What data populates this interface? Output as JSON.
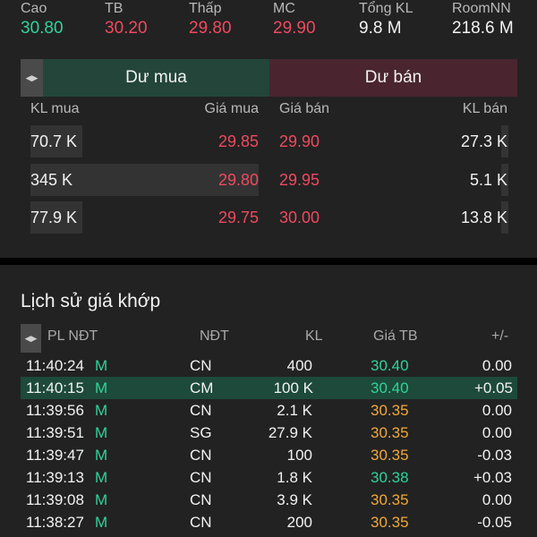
{
  "colors": {
    "up": "#2fd39a",
    "down": "#ee4a5f",
    "ref": "#f0a838",
    "buy_header_bg": "#23453a",
    "sell_header_bg": "#4a2530",
    "highlight_row_bg": "#1d4a3a"
  },
  "stats": [
    {
      "label": "Cao",
      "value": "30.80",
      "tone": "green"
    },
    {
      "label": "TB",
      "value": "30.20",
      "tone": "red"
    },
    {
      "label": "Thấp",
      "value": "29.80",
      "tone": "red"
    },
    {
      "label": "MC",
      "value": "29.90",
      "tone": "red"
    },
    {
      "label": "Tổng KL",
      "value": "9.8 M",
      "tone": "white"
    },
    {
      "label": "RoomNN",
      "value": "218.6 M",
      "tone": "white"
    }
  ],
  "orderbook": {
    "toggle_icon": "expand-arrows-icon",
    "buy_tab": "Dư mua",
    "sell_tab": "Dư bán",
    "columns": {
      "buy_vol": "KL mua",
      "buy_price": "Giá mua",
      "sell_price": "Giá bán",
      "sell_vol": "KL bán"
    },
    "rows": [
      {
        "buy_vol": "70.7 K",
        "buy_price": "29.85",
        "sell_price": "29.90",
        "sell_vol": "27.3 K",
        "buy_depth": 0.2,
        "sell_depth": 0.02
      },
      {
        "buy_vol": "345 K",
        "buy_price": "29.80",
        "sell_price": "29.95",
        "sell_vol": "5.1 K",
        "buy_depth": 1.0,
        "sell_depth": 0.02
      },
      {
        "buy_vol": "77.9 K",
        "buy_price": "29.75",
        "sell_price": "30.00",
        "sell_vol": "13.8 K",
        "buy_depth": 0.22,
        "sell_depth": 0.02
      }
    ]
  },
  "history": {
    "title": "Lịch sử giá khớp",
    "toggle_icon": "expand-arrows-icon",
    "columns": {
      "time": "PL NĐT",
      "type": "NĐT",
      "vol": "KL",
      "price": "Giá TB",
      "change": "+/-"
    },
    "rows": [
      {
        "time": "11:40:24",
        "side": "M",
        "type": "CN",
        "vol": "400",
        "price": "30.40",
        "price_tone": "green",
        "change": "0.00",
        "highlight": false
      },
      {
        "time": "11:40:15",
        "side": "M",
        "type": "CM",
        "vol": "100 K",
        "price": "30.40",
        "price_tone": "green",
        "change": "+0.05",
        "highlight": true
      },
      {
        "time": "11:39:56",
        "side": "M",
        "type": "CN",
        "vol": "2.1 K",
        "price": "30.35",
        "price_tone": "orange",
        "change": "0.00",
        "highlight": false
      },
      {
        "time": "11:39:51",
        "side": "M",
        "type": "SG",
        "vol": "27.9 K",
        "price": "30.35",
        "price_tone": "orange",
        "change": "0.00",
        "highlight": false
      },
      {
        "time": "11:39:47",
        "side": "M",
        "type": "CN",
        "vol": "100",
        "price": "30.35",
        "price_tone": "orange",
        "change": "-0.03",
        "highlight": false
      },
      {
        "time": "11:39:13",
        "side": "M",
        "type": "CN",
        "vol": "1.8 K",
        "price": "30.38",
        "price_tone": "green",
        "change": "+0.03",
        "highlight": false
      },
      {
        "time": "11:39:08",
        "side": "M",
        "type": "CN",
        "vol": "3.9 K",
        "price": "30.35",
        "price_tone": "orange",
        "change": "0.00",
        "highlight": false
      },
      {
        "time": "11:38:27",
        "side": "M",
        "type": "CN",
        "vol": "200",
        "price": "30.35",
        "price_tone": "orange",
        "change": "-0.05",
        "highlight": false
      }
    ]
  }
}
